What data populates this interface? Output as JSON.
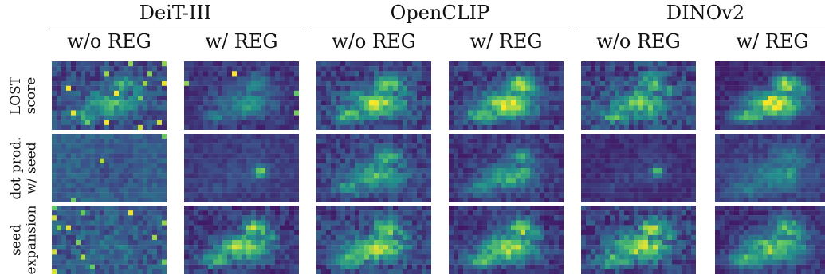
{
  "models": [
    {
      "name": "DeiT-III",
      "variants": [
        "w/o REG",
        "w/ REG"
      ]
    },
    {
      "name": "OpenCLIP",
      "variants": [
        "w/o REG",
        "w/ REG"
      ]
    },
    {
      "name": "DINOv2",
      "variants": [
        "w/o REG",
        "w/ REG"
      ]
    }
  ],
  "rows": [
    {
      "lines": [
        "LOST",
        "score"
      ]
    },
    {
      "lines": [
        "dot prod.",
        "w/ seed"
      ]
    },
    {
      "lines": [
        "seed",
        "expansion"
      ]
    }
  ],
  "colormap": [
    "#440154",
    "#3b528b",
    "#21918c",
    "#5ec962",
    "#fde725"
  ]
}
